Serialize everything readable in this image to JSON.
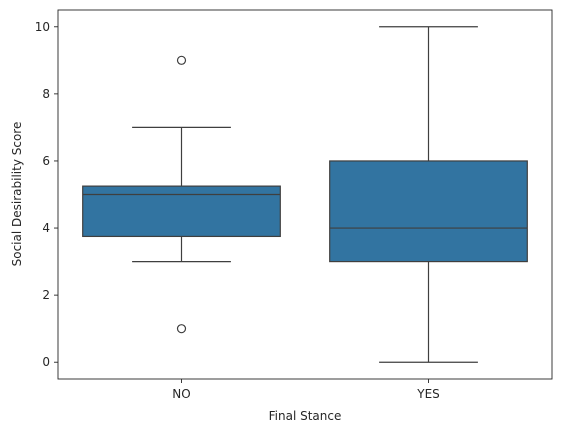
{
  "chart_data": {
    "type": "box",
    "title": "",
    "xlabel": "Final Stance",
    "ylabel": "Social Desirability Score",
    "categories": [
      "NO",
      "YES"
    ],
    "ylim": [
      -0.5,
      10.5
    ],
    "yticks": [
      0,
      2,
      4,
      6,
      8,
      10
    ],
    "grid": false,
    "legend": false,
    "box_color": "#3274a1",
    "line_color": "#3f3f3f",
    "boxes": [
      {
        "category": "NO",
        "whisker_low": 3,
        "q1": 3.75,
        "median": 5,
        "q3": 5.25,
        "whisker_high": 7,
        "outliers": [
          9,
          1
        ]
      },
      {
        "category": "YES",
        "whisker_low": 0,
        "q1": 3,
        "median": 4,
        "q3": 6,
        "whisker_high": 10,
        "outliers": []
      }
    ]
  }
}
